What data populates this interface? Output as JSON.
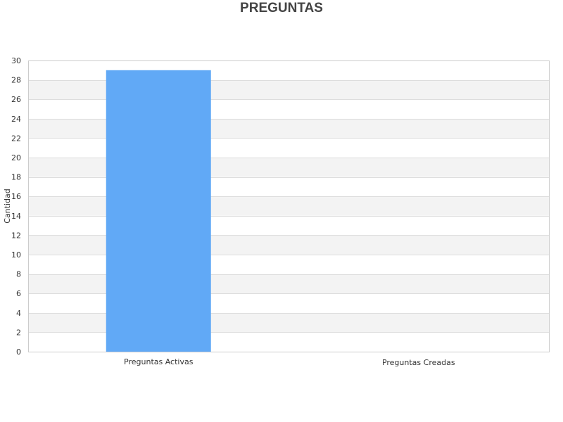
{
  "chart_data": {
    "type": "bar",
    "title": "PREGUNTAS",
    "xlabel": "",
    "ylabel": "Cantidad",
    "categories": [
      "Preguntas Activas",
      "Preguntas Creadas"
    ],
    "values": [
      29,
      0
    ],
    "ylim": [
      0,
      30
    ],
    "ytick_step": 2,
    "bar_color": "#61a9f6",
    "grid": true,
    "band_colors": [
      "#ffffff",
      "#f3f3f3"
    ],
    "legend": "none"
  }
}
